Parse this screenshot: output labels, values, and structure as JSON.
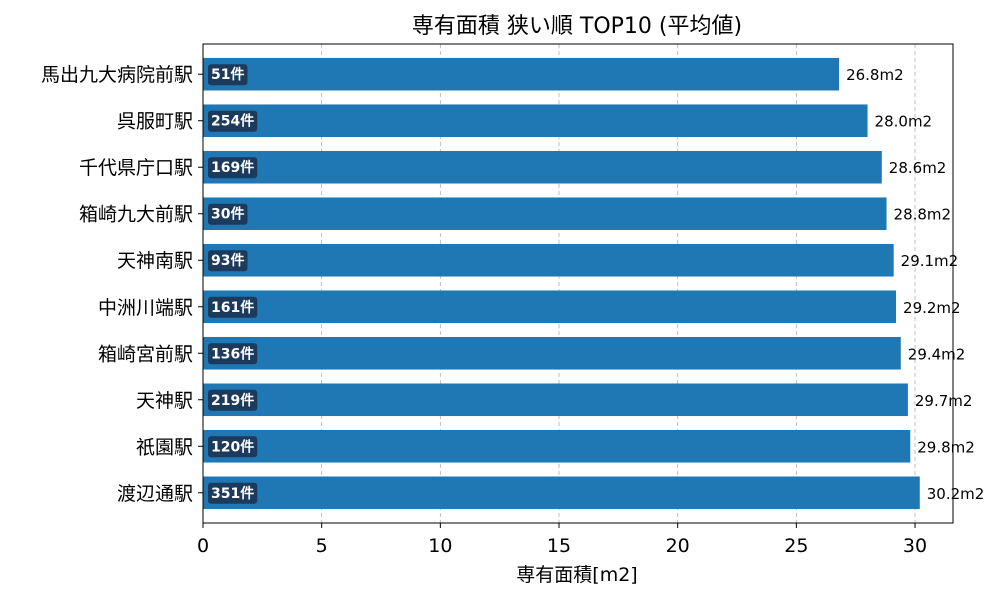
{
  "chart_data": {
    "type": "bar",
    "orientation": "horizontal",
    "title": "専有面積 狭い順 TOP10 (平均値)",
    "xlabel": "専有面積[m2]",
    "ylabel": "",
    "xlim": [
      0,
      31.6
    ],
    "xticks": [
      0,
      5,
      10,
      15,
      20,
      25,
      30
    ],
    "grid": "x-dashed",
    "bar_color": "#1f77b4",
    "badge_color": "#1b3a5c",
    "categories": [
      "馬出九大病院前駅",
      "呉服町駅",
      "千代県庁口駅",
      "箱崎九大前駅",
      "天神南駅",
      "中洲川端駅",
      "箱崎宮前駅",
      "天神駅",
      "祇園駅",
      "渡辺通駅"
    ],
    "values": [
      26.8,
      28.0,
      28.6,
      28.8,
      29.1,
      29.2,
      29.4,
      29.7,
      29.8,
      30.2
    ],
    "value_labels": [
      "26.8m2",
      "28.0m2",
      "28.6m2",
      "28.8m2",
      "29.1m2",
      "29.2m2",
      "29.4m2",
      "29.7m2",
      "29.8m2",
      "30.2m2"
    ],
    "count_labels": [
      "51件",
      "254件",
      "169件",
      "30件",
      "93件",
      "161件",
      "136件",
      "219件",
      "120件",
      "351件"
    ]
  }
}
